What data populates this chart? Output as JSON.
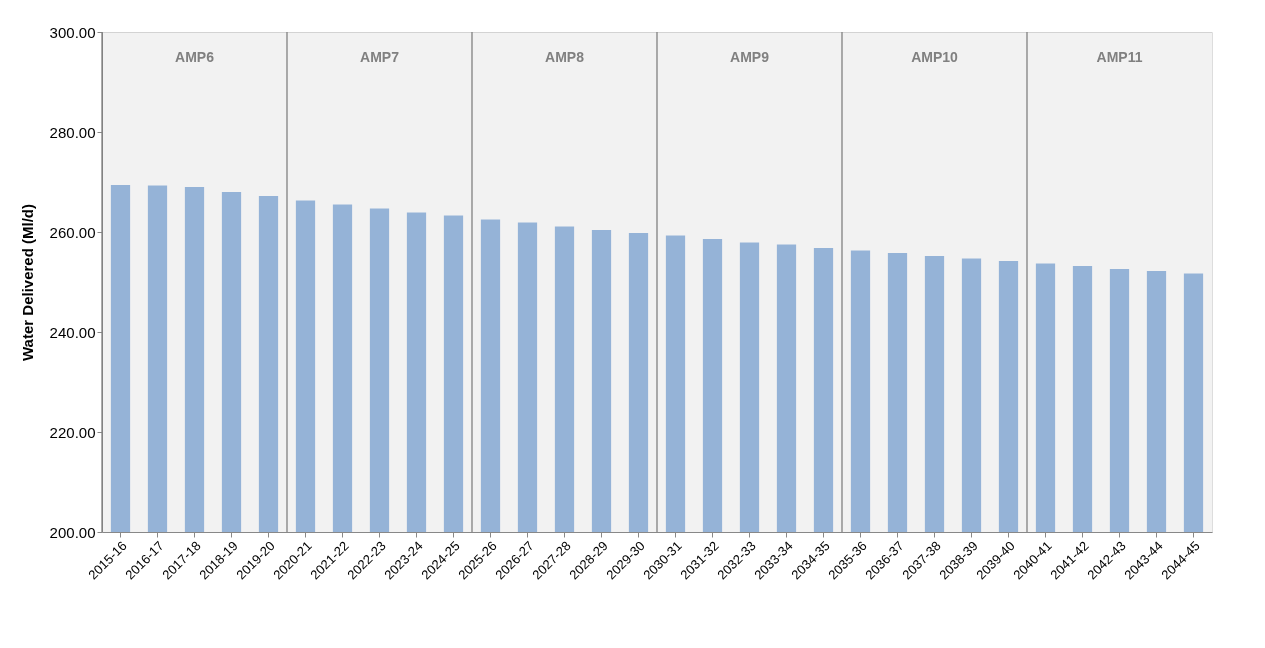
{
  "chart_data": {
    "type": "bar",
    "ylabel": "Water Delivered (Ml/d)",
    "categories": [
      "2015-16",
      "2016-17",
      "2017-18",
      "2018-19",
      "2019-20",
      "2020-21",
      "2021-22",
      "2022-23",
      "2023-24",
      "2024-25",
      "2025-26",
      "2026-27",
      "2027-28",
      "2028-29",
      "2029-30",
      "2030-31",
      "2031-32",
      "2032-33",
      "2033-34",
      "2034-35",
      "2035-36",
      "2036-37",
      "2037-38",
      "2038-39",
      "2039-40",
      "2040-41",
      "2041-42",
      "2042-43",
      "2043-44",
      "2044-45"
    ],
    "values": [
      269.4,
      269.3,
      269.0,
      268.0,
      267.2,
      266.3,
      265.5,
      264.7,
      263.9,
      263.3,
      262.5,
      261.9,
      261.1,
      260.4,
      259.8,
      259.3,
      258.6,
      257.9,
      257.5,
      256.8,
      256.3,
      255.8,
      255.2,
      254.7,
      254.2,
      253.7,
      253.2,
      252.6,
      252.2,
      251.7
    ],
    "color": "#95b3d7",
    "ylim": [
      200,
      300
    ],
    "yticks": [
      {
        "value": 200,
        "label": "200.00"
      },
      {
        "value": 220,
        "label": "220.00"
      },
      {
        "value": 240,
        "label": "240.00"
      },
      {
        "value": 260,
        "label": "260.00"
      },
      {
        "value": 280,
        "label": "280.00"
      },
      {
        "value": 300,
        "label": "300.00"
      }
    ],
    "bands": [
      {
        "axis": "x",
        "from": "2015-16",
        "to": "2019-20",
        "label": "AMP6",
        "color": "#808080"
      },
      {
        "axis": "x",
        "from": "2020-21",
        "to": "2024-25",
        "label": "AMP7",
        "color": "#808080"
      },
      {
        "axis": "x",
        "from": "2025-26",
        "to": "2029-30",
        "label": "AMP8",
        "color": "#808080"
      },
      {
        "axis": "x",
        "from": "2030-31",
        "to": "2034-35",
        "label": "AMP9",
        "color": "#808080"
      },
      {
        "axis": "x",
        "from": "2035-36",
        "to": "2039-40",
        "label": "AMP10",
        "color": "#808080"
      },
      {
        "axis": "x",
        "from": "2040-41",
        "to": "2044-45",
        "label": "AMP11",
        "color": "#808080"
      }
    ],
    "grid": false
  }
}
